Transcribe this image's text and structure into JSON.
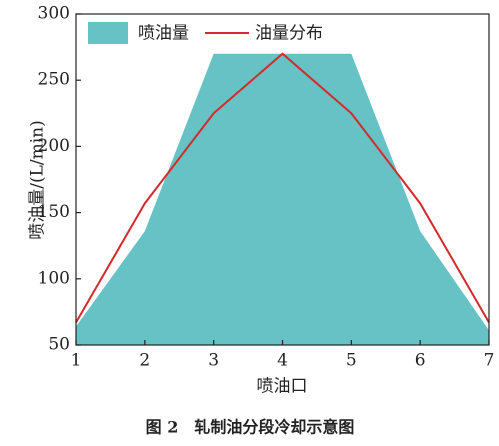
{
  "chart_data": {
    "type": "area-line",
    "xlabel": "喷油口",
    "ylabel": "喷油量/(L/min)",
    "caption": "图 2　轧制油分段冷却示意图",
    "x": [
      1,
      2,
      3,
      4,
      5,
      6,
      7
    ],
    "series": [
      {
        "name": "喷油量",
        "kind": "area",
        "color": "#66c2c4",
        "values": [
          64,
          136,
          270,
          270,
          270,
          136,
          61
        ]
      },
      {
        "name": "油量分布",
        "kind": "line",
        "color": "#d42a2a",
        "values": [
          67,
          157,
          225,
          270,
          225,
          157,
          67
        ]
      }
    ],
    "xlim": [
      1,
      7
    ],
    "xticks": [
      1,
      2,
      3,
      4,
      5,
      6,
      7
    ],
    "ylim": [
      50,
      300
    ],
    "yticks": [
      50,
      100,
      150,
      200,
      250,
      300
    ],
    "legend": "upper left"
  }
}
